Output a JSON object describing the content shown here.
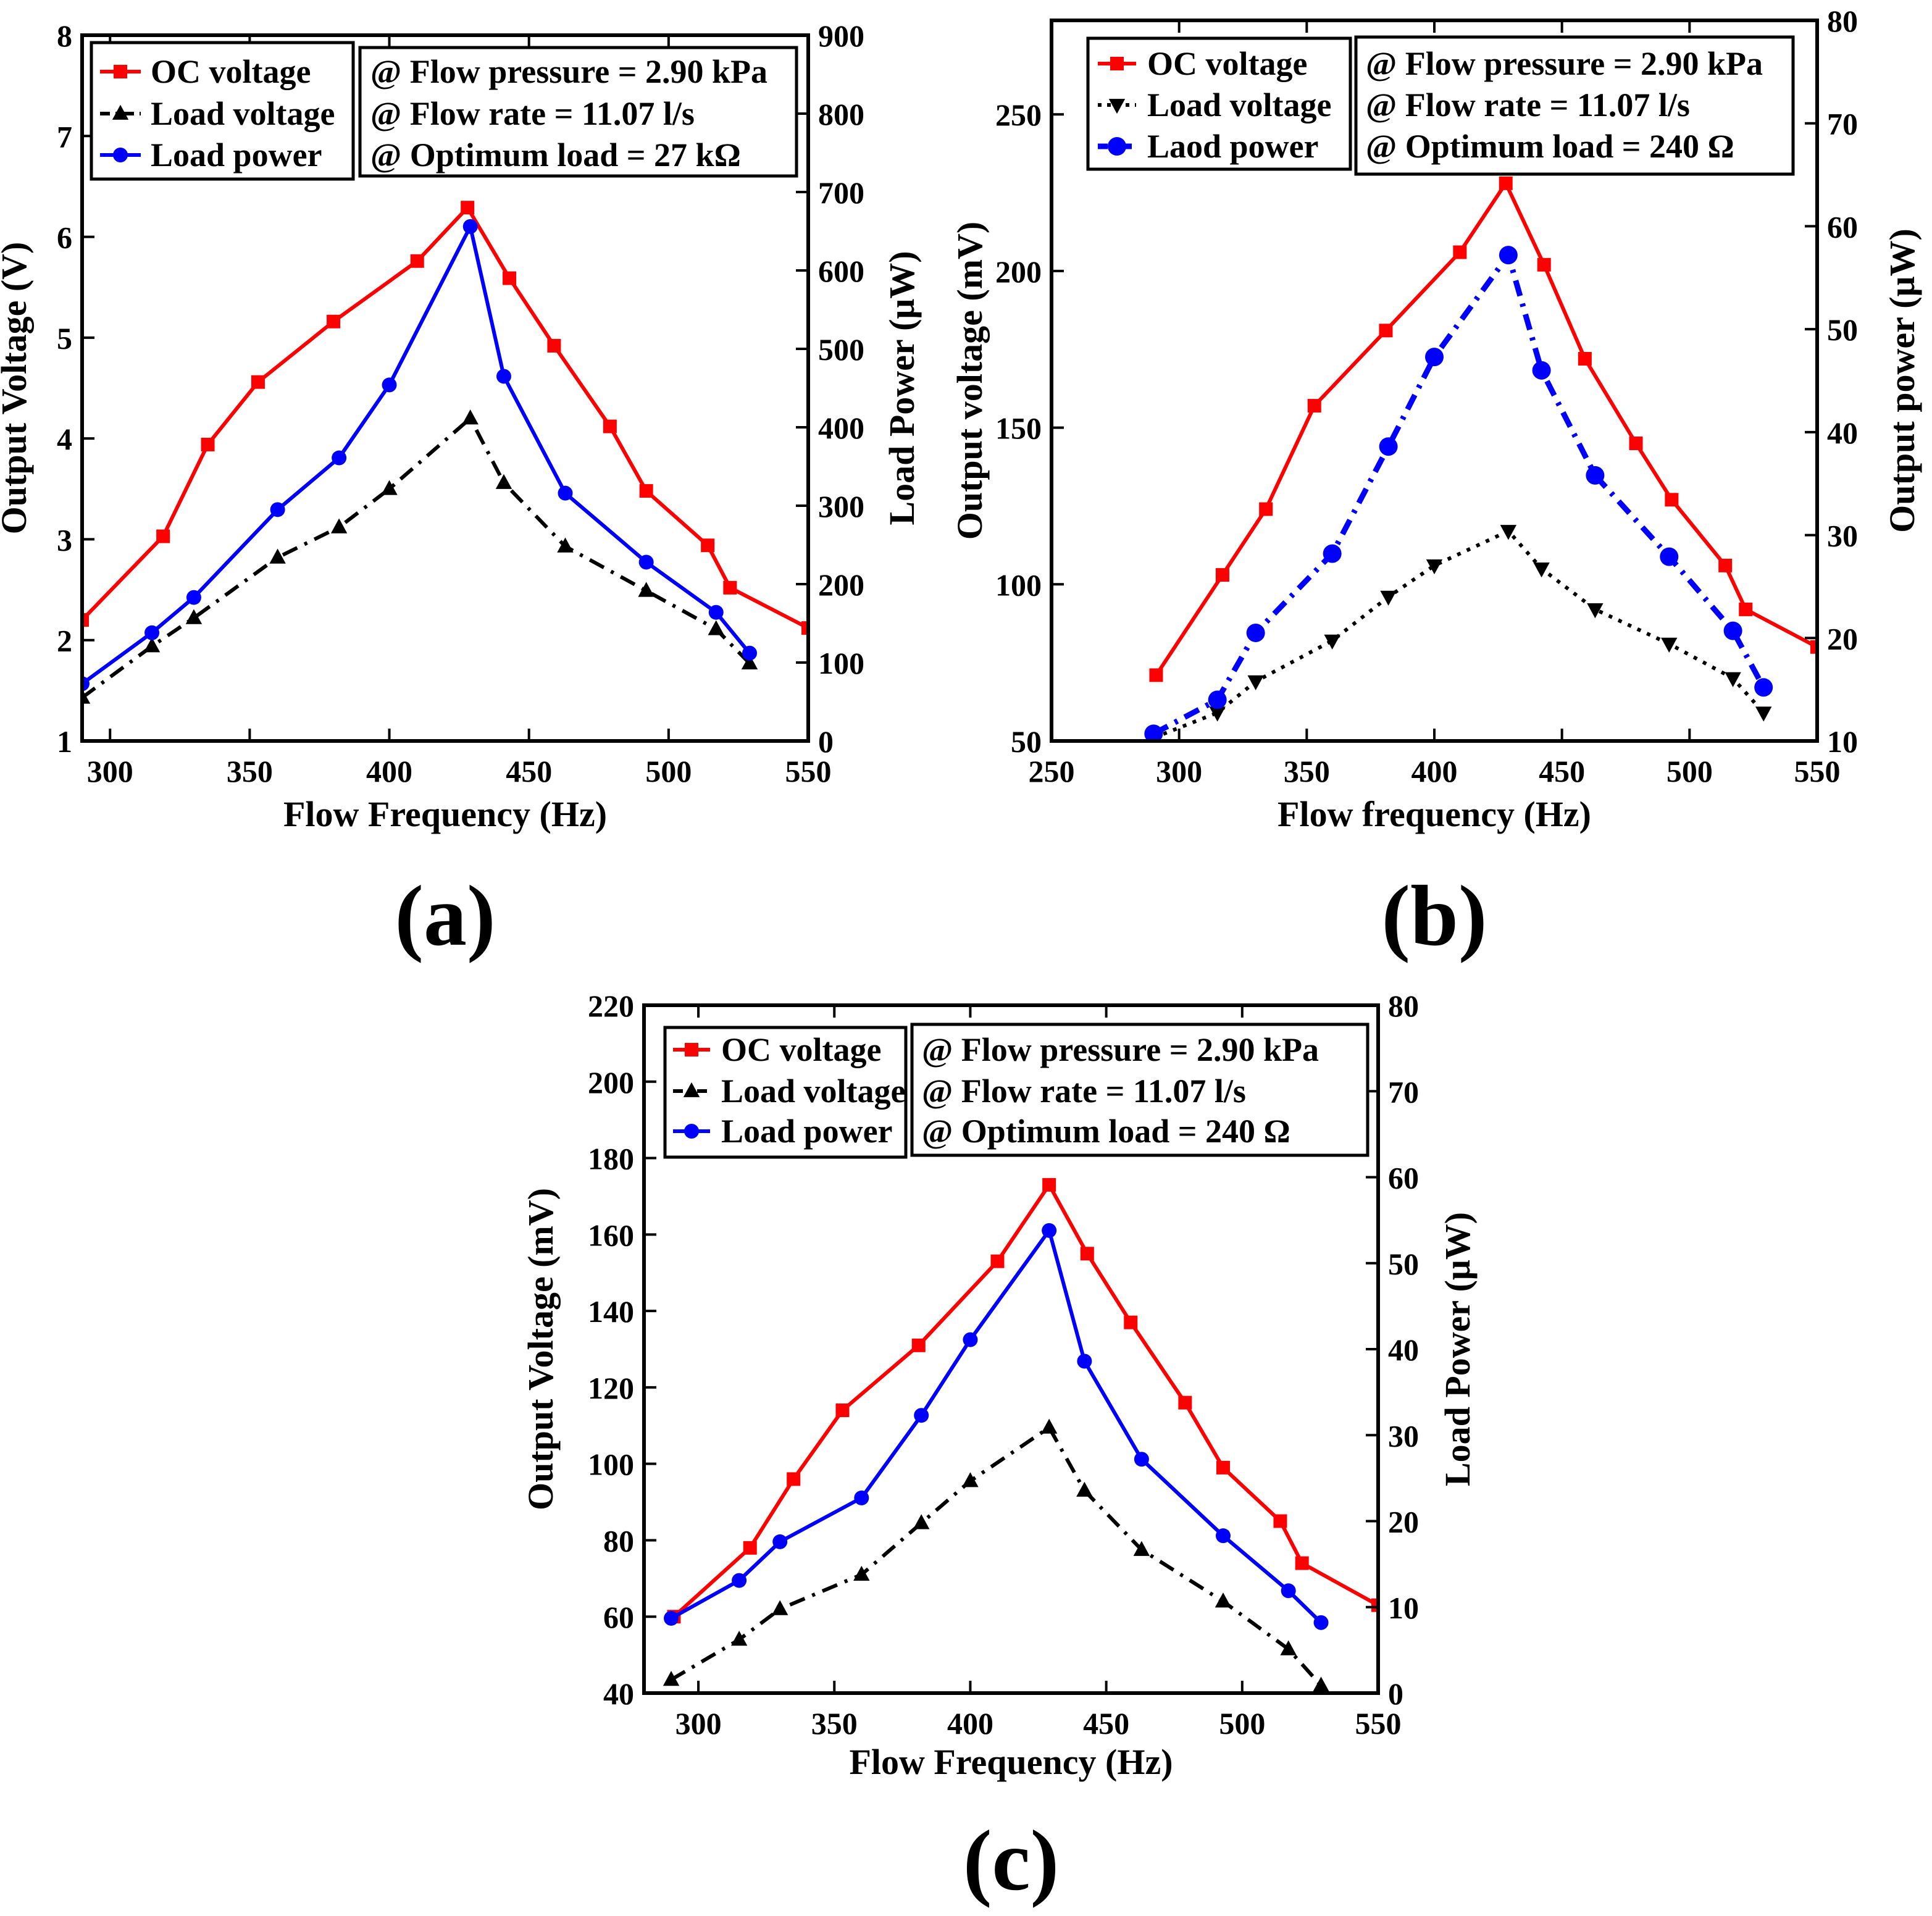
{
  "colors": {
    "oc": "#ff0000",
    "load_voltage": "#000000",
    "load_power": "#0000ff"
  },
  "chart_data": [
    {
      "type": "line",
      "panel_label": "(a)",
      "xlabel": "Flow Frequency (Hz)",
      "ylabel": "Output Voltage (V)",
      "y2label": "Load Power (μW)",
      "xlim": [
        290,
        550
      ],
      "ylim": [
        1,
        8
      ],
      "y2lim": [
        0,
        900
      ],
      "xticks": [
        300,
        350,
        400,
        450,
        500,
        550
      ],
      "yticks": [
        1,
        2,
        3,
        4,
        5,
        6,
        7,
        8
      ],
      "y2ticks": [
        0,
        100,
        200,
        300,
        400,
        500,
        600,
        700,
        800,
        900
      ],
      "legend_position": "top-left",
      "annotations": [
        "@ Flow pressure = 2.90 kPa",
        "@ Flow rate = 11.07 l/s",
        "@ Optimum load = 27 kΩ"
      ],
      "series": [
        {
          "name": "OC voltage",
          "axis": "left",
          "style": "solid",
          "marker": "square",
          "color_key": "oc",
          "x": [
            290,
            319,
            335,
            353,
            380,
            410,
            428,
            443,
            459,
            479,
            492,
            514,
            522,
            550
          ],
          "y": [
            2.2,
            3.03,
            3.94,
            4.56,
            5.16,
            5.76,
            6.29,
            5.59,
            4.92,
            4.12,
            3.48,
            2.94,
            2.52,
            2.12
          ]
        },
        {
          "name": "Load voltage",
          "axis": "left",
          "style": "dashdot",
          "marker": "triangle-up",
          "color_key": "load_voltage",
          "x": [
            290,
            315,
            330,
            360,
            382,
            400,
            429,
            441,
            463,
            492,
            517,
            529
          ],
          "y": [
            1.43,
            1.94,
            2.22,
            2.82,
            3.12,
            3.5,
            4.2,
            3.56,
            2.93,
            2.49,
            2.11,
            1.77
          ]
        },
        {
          "name": "Load power",
          "axis": "right",
          "style": "solid",
          "marker": "circle",
          "color_key": "load_power",
          "x": [
            290,
            315,
            330,
            360,
            382,
            400,
            429,
            441,
            463,
            492,
            517,
            529
          ],
          "y": [
            73,
            138,
            183,
            295,
            361,
            454,
            656,
            465,
            316,
            228,
            164,
            112
          ]
        }
      ]
    },
    {
      "type": "line",
      "panel_label": "(b)",
      "xlabel": "Flow frequency (Hz)",
      "ylabel": "Output voltage (mV)",
      "y2label": "Output power (μW)",
      "xlim": [
        250,
        550
      ],
      "ylim": [
        50,
        280
      ],
      "y2lim": [
        10,
        80
      ],
      "xticks": [
        250,
        300,
        350,
        400,
        450,
        500,
        550
      ],
      "yticks": [
        50,
        100,
        150,
        200,
        250
      ],
      "y2ticks": [
        10,
        20,
        30,
        40,
        50,
        60,
        70,
        80
      ],
      "legend_position": "top-left",
      "annotations": [
        "@ Flow pressure = 2.90 kPa",
        "@ Flow rate = 11.07 l/s",
        "@ Optimum load = 240 Ω"
      ],
      "series": [
        {
          "name": "OC voltage",
          "axis": "left",
          "style": "solid",
          "marker": "square",
          "color_key": "oc",
          "x": [
            291,
            317,
            334,
            353,
            381,
            410,
            428,
            443,
            459,
            479,
            493,
            514,
            522,
            550
          ],
          "y": [
            71,
            103,
            124,
            157,
            181,
            206,
            228,
            202,
            172,
            145,
            127,
            106,
            92,
            80
          ]
        },
        {
          "name": "Load voltage",
          "axis": "left",
          "style": "dotted",
          "marker": "triangle-down",
          "color_key": "load_voltage",
          "x": [
            290,
            315,
            330,
            360,
            382,
            400,
            429,
            442,
            463,
            492,
            517,
            529
          ],
          "y": [
            51,
            59,
            69,
            82,
            96,
            106,
            117,
            105,
            92,
            81,
            70,
            59
          ]
        },
        {
          "name": "Laod power",
          "axis": "right",
          "style": "dashdot",
          "marker": "circle",
          "color_key": "load_power",
          "x": [
            290,
            315,
            330,
            360,
            382,
            400,
            429,
            442,
            463,
            492,
            517,
            529
          ],
          "y": [
            10.7,
            14,
            20.5,
            28.2,
            38.6,
            47.3,
            57.2,
            46,
            35.8,
            27.9,
            20.7,
            15.2
          ]
        }
      ]
    },
    {
      "type": "line",
      "panel_label": "(c)",
      "xlabel": "Flow Frequency (Hz)",
      "ylabel": "Output Voltage (mV)",
      "y2label": "Load Power (μW)",
      "xlim": [
        280,
        550
      ],
      "ylim": [
        40,
        220
      ],
      "y2lim": [
        0,
        80
      ],
      "xticks": [
        300,
        350,
        400,
        450,
        500,
        550
      ],
      "yticks": [
        40,
        60,
        80,
        100,
        120,
        140,
        160,
        180,
        200,
        220
      ],
      "y2ticks": [
        0,
        10,
        20,
        30,
        40,
        50,
        60,
        70,
        80
      ],
      "legend_position": "top-left",
      "annotations": [
        "@ Flow pressure = 2.90 kPa",
        "@ Flow rate = 11.07 l/s",
        "@ Optimum load = 240 Ω"
      ],
      "series": [
        {
          "name": "OC voltage",
          "axis": "left",
          "style": "solid",
          "marker": "square",
          "color_key": "oc",
          "x": [
            291,
            319,
            335,
            353,
            381,
            410,
            429,
            443,
            459,
            479,
            493,
            514,
            522,
            550
          ],
          "y": [
            60,
            78,
            96,
            114,
            131,
            153,
            173,
            155,
            137,
            116,
            99,
            85,
            74,
            63
          ]
        },
        {
          "name": "Load voltage",
          "axis": "left",
          "style": "dashdot",
          "marker": "triangle-up",
          "color_key": "load_voltage",
          "x": [
            290,
            315,
            330,
            360,
            382,
            400,
            429,
            442,
            463,
            493,
            517,
            529
          ],
          "y": [
            43.5,
            54,
            62,
            71,
            84.5,
            95.5,
            109.5,
            93,
            77.5,
            64,
            51.5,
            42
          ]
        },
        {
          "name": "Load power",
          "axis": "right",
          "style": "solid",
          "marker": "circle",
          "color_key": "load_power",
          "x": [
            290,
            315,
            330,
            360,
            382,
            400,
            429,
            442,
            463,
            493,
            517,
            529
          ],
          "y": [
            8.7,
            13.1,
            17.6,
            22.7,
            32.3,
            41.1,
            53.8,
            38.6,
            27.2,
            18.3,
            11.9,
            8.2
          ]
        }
      ]
    }
  ]
}
